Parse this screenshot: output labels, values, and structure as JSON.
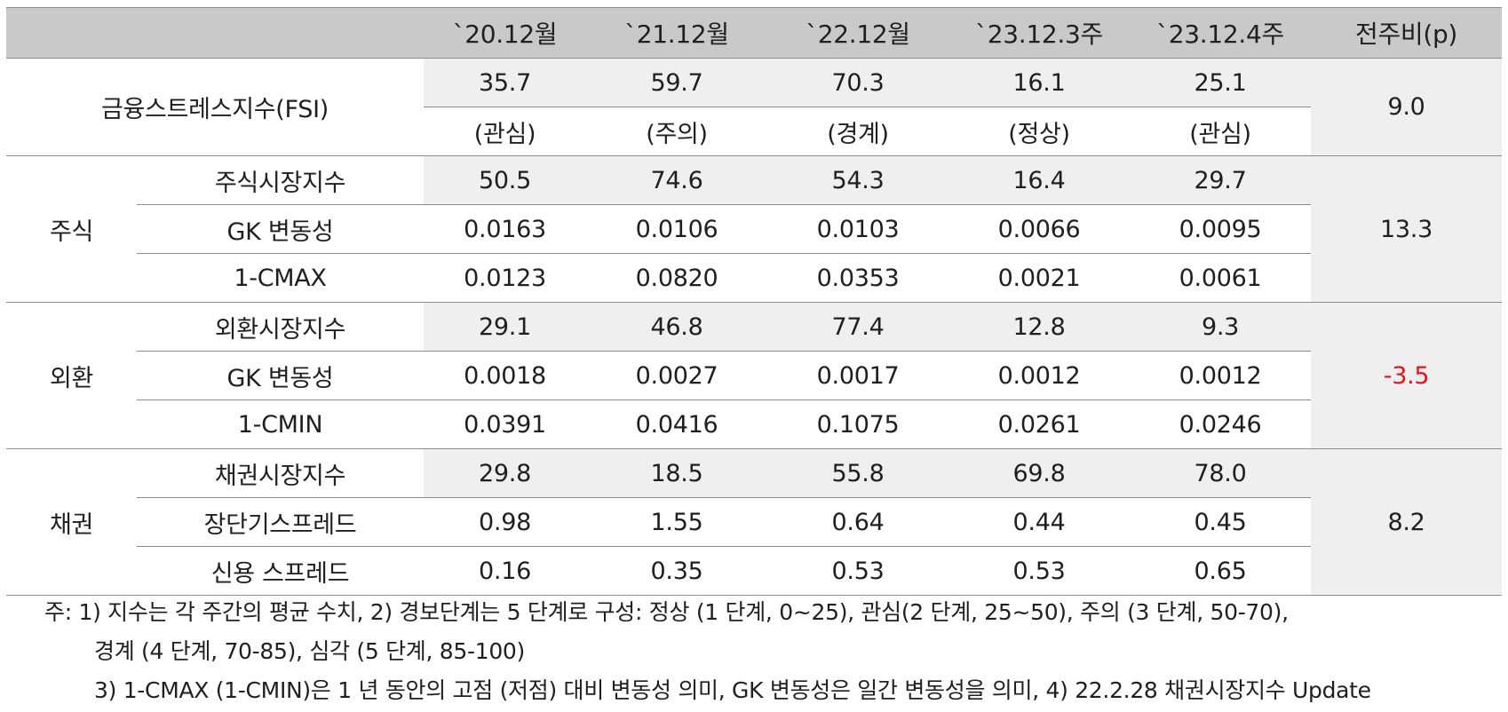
{
  "header": {
    "corner": "",
    "periods": [
      "`20.12월",
      "`21.12월",
      "`22.12월",
      "`23.12.3주",
      "`23.12.4주"
    ],
    "change": "전주비(p)"
  },
  "fsi": {
    "label": "금융스트레스지수(FSI)",
    "values": [
      "35.7",
      "59.7",
      "70.3",
      "16.1",
      "25.1"
    ],
    "levels": [
      "(관심)",
      "(주의)",
      "(경계)",
      "(정상)",
      "(관심)"
    ],
    "change": "9.0"
  },
  "groups": [
    {
      "name": "주식",
      "change": "13.3",
      "change_negative": false,
      "rows": [
        {
          "label": "주식시장지수",
          "values": [
            "50.5",
            "74.6",
            "54.3",
            "16.4",
            "29.7"
          ]
        },
        {
          "label": "GK 변동성",
          "values": [
            "0.0163",
            "0.0106",
            "0.0103",
            "0.0066",
            "0.0095"
          ]
        },
        {
          "label": "1-CMAX",
          "values": [
            "0.0123",
            "0.0820",
            "0.0353",
            "0.0021",
            "0.0061"
          ]
        }
      ]
    },
    {
      "name": "외환",
      "change": "-3.5",
      "change_negative": true,
      "rows": [
        {
          "label": "외환시장지수",
          "values": [
            "29.1",
            "46.8",
            "77.4",
            "12.8",
            "9.3"
          ]
        },
        {
          "label": "GK 변동성",
          "values": [
            "0.0018",
            "0.0027",
            "0.0017",
            "0.0012",
            "0.0012"
          ]
        },
        {
          "label": "1-CMIN",
          "values": [
            "0.0391",
            "0.0416",
            "0.1075",
            "0.0261",
            "0.0246"
          ]
        }
      ]
    },
    {
      "name": "채권",
      "change": "8.2",
      "change_negative": false,
      "rows": [
        {
          "label": "채권시장지수",
          "values": [
            "29.8",
            "18.5",
            "55.8",
            "69.8",
            "78.0"
          ]
        },
        {
          "label": "장단기스프레드",
          "values": [
            "0.98",
            "1.55",
            "0.64",
            "0.44",
            "0.45"
          ]
        },
        {
          "label": "신용 스프레드",
          "values": [
            "0.16",
            "0.35",
            "0.53",
            "0.53",
            "0.65"
          ]
        }
      ]
    }
  ],
  "colors": {
    "header_bg": "#c9c9c9",
    "shade_bg": "#efefef",
    "negative": "#e0141e"
  },
  "notes": [
    "주: 1) 지수는 각 주간의 평균 수치, 2) 경보단계는 5 단계로 구성: 정상 (1 단계, 0~25), 관심(2 단계, 25~50), 주의 (3 단계, 50-70),",
    "경계 (4 단계, 70-85), 심각 (5 단계, 85-100)",
    "3) 1-CMAX (1-CMIN)은 1 년 동안의 고점 (저점) 대비 변동성 의미, GK 변동성은 일간 변동성을 의미, 4) 22.2.28 채권시장지수 Update"
  ]
}
